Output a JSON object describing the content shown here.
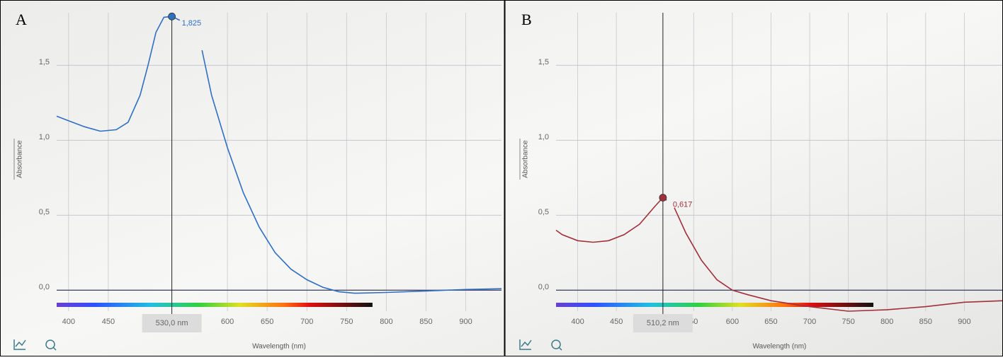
{
  "chart_data": [
    {
      "type": "line",
      "panel_label": "A",
      "y_label": "Absorbance",
      "x_label": "Wavelength (nm)",
      "x": [
        385,
        400,
        420,
        440,
        460,
        475,
        490,
        500,
        510,
        520,
        530,
        540,
        555,
        568,
        580,
        600,
        620,
        640,
        660,
        680,
        700,
        720,
        740,
        760,
        800,
        850,
        900,
        945
      ],
      "series": [
        {
          "color": "#2f6fc0",
          "values": [
            1.16,
            1.13,
            1.09,
            1.06,
            1.07,
            1.12,
            1.3,
            1.5,
            1.72,
            1.82,
            1.825,
            1.8,
            null,
            1.6,
            1.3,
            0.95,
            0.65,
            0.42,
            0.25,
            0.14,
            0.07,
            0.02,
            -0.01,
            -0.02,
            -0.015,
            -0.005,
            0.005,
            0.01
          ]
        }
      ],
      "xlim": [
        385,
        945
      ],
      "ylim": [
        -0.14,
        1.85
      ],
      "xticks": [
        400,
        450,
        600,
        650,
        700,
        750,
        800,
        850,
        900
      ],
      "yticks": [
        {
          "value": 0,
          "label": "0,0"
        },
        {
          "value": 0.5,
          "label": "0,5"
        },
        {
          "value": 1,
          "label": "1,0"
        },
        {
          "value": 1.5,
          "label": "1,5"
        }
      ],
      "cursor": {
        "x": 530,
        "label": "530,0 nm"
      },
      "annotation": {
        "x": 530,
        "y": 1.825,
        "label": "1,825"
      }
    },
    {
      "type": "line",
      "panel_label": "B",
      "y_label": "Absorbance",
      "x_label": "Wavelength (nm)",
      "x": [
        372,
        380,
        400,
        420,
        440,
        460,
        480,
        500,
        510,
        515,
        520,
        525,
        540,
        560,
        580,
        600,
        620,
        650,
        700,
        750,
        800,
        850,
        900,
        950
      ],
      "series": [
        {
          "color": "#a0303c",
          "values": [
            0.4,
            0.37,
            0.33,
            0.32,
            0.33,
            0.37,
            0.44,
            0.56,
            0.617,
            0.6,
            null,
            0.55,
            0.38,
            0.2,
            0.07,
            0.0,
            -0.03,
            -0.07,
            -0.11,
            -0.14,
            -0.13,
            -0.11,
            -0.08,
            -0.07
          ]
        }
      ],
      "xlim": [
        372,
        950
      ],
      "ylim": [
        -0.14,
        1.85
      ],
      "xticks": [
        400,
        450,
        {
          "value": 550,
          "label": "50"
        },
        600,
        650,
        700,
        750,
        800,
        850,
        900
      ],
      "yticks": [
        {
          "value": 0,
          "label": "0,0"
        },
        {
          "value": 0.5,
          "label": "0,5"
        },
        {
          "value": 1,
          "label": "1,0"
        },
        {
          "value": 1.5,
          "label": "1,5"
        }
      ],
      "cursor": {
        "x": 510.2,
        "label": "510,2 nm"
      },
      "annotation": {
        "x": 510.2,
        "y": 0.617,
        "label": "0,617"
      }
    }
  ]
}
